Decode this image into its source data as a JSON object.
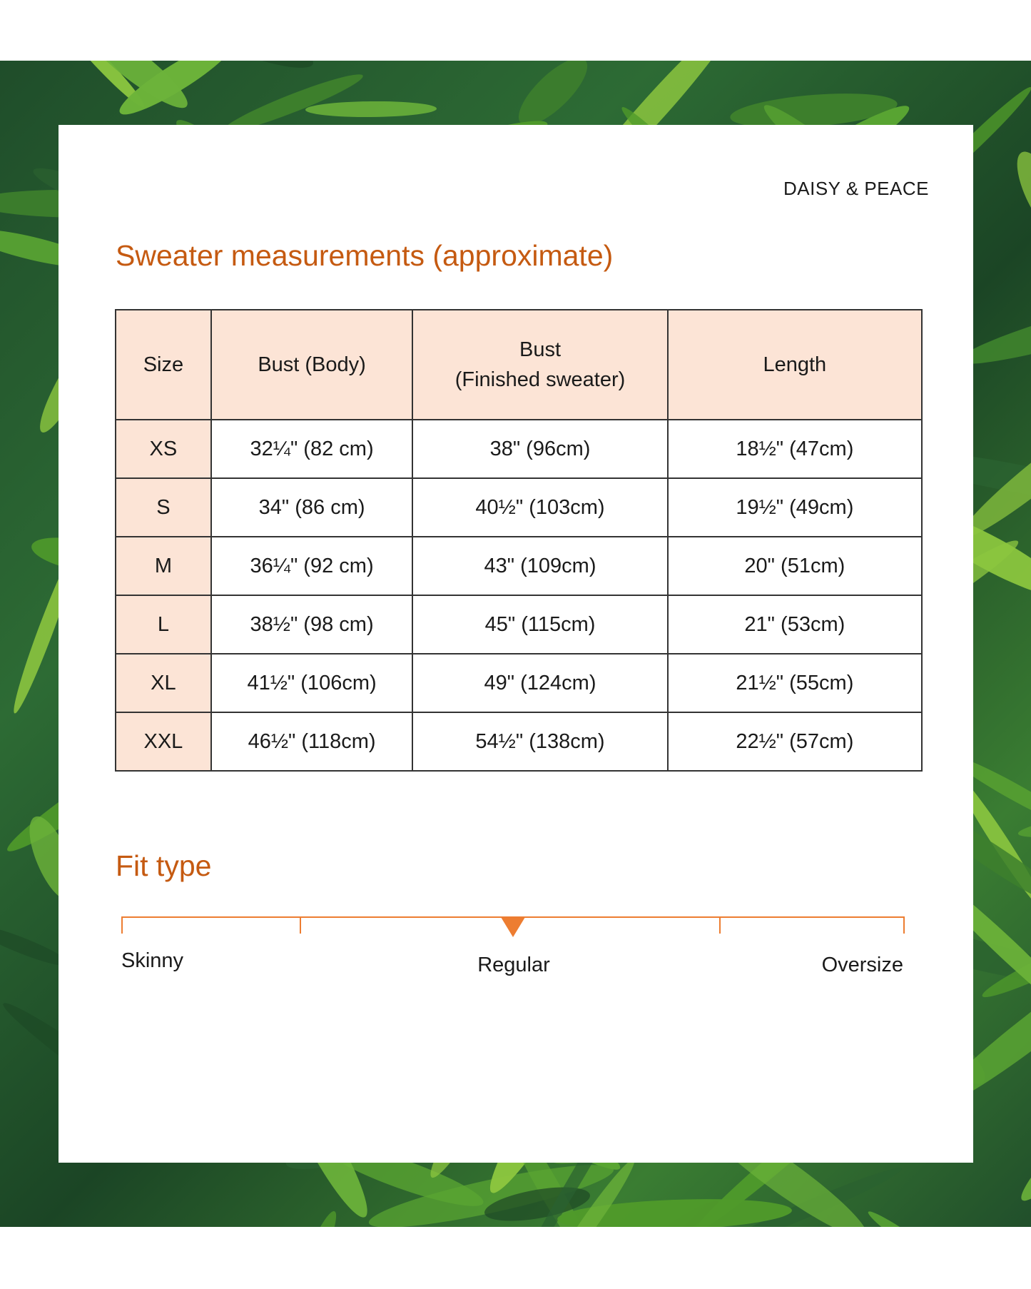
{
  "brand": "DAISY & PEACE",
  "measurements": {
    "title": "Sweater measurements (approximate)",
    "headers": [
      "Size",
      "Bust (Body)",
      "Bust\n(Finished sweater)",
      "Length"
    ],
    "rows": [
      [
        "XS",
        "32¼\" (82 cm)",
        "38\" (96cm)",
        "18½\" (47cm)"
      ],
      [
        "S",
        "34\" (86 cm)",
        "40½\" (103cm)",
        "19½\" (49cm)"
      ],
      [
        "M",
        "36¼\" (92 cm)",
        "43\" (109cm)",
        "20\" (51cm)"
      ],
      [
        "L",
        "38½\" (98 cm)",
        "45\" (115cm)",
        "21\" (53cm)"
      ],
      [
        "XL",
        "41½\" (106cm)",
        "49\" (124cm)",
        "21½\" (55cm)"
      ],
      [
        "XXL",
        "46½\" (118cm)",
        "54½\" (138cm)",
        "22½\" (57cm)"
      ]
    ]
  },
  "fit": {
    "title": "Fit type",
    "labels": {
      "left": "Skinny",
      "middle": "Regular",
      "right": "Oversize"
    },
    "marker_position": 0.5,
    "accent_color": "#ed7d31"
  },
  "colors": {
    "heading": "#c55a11",
    "header_fill": "#fce4d6"
  }
}
